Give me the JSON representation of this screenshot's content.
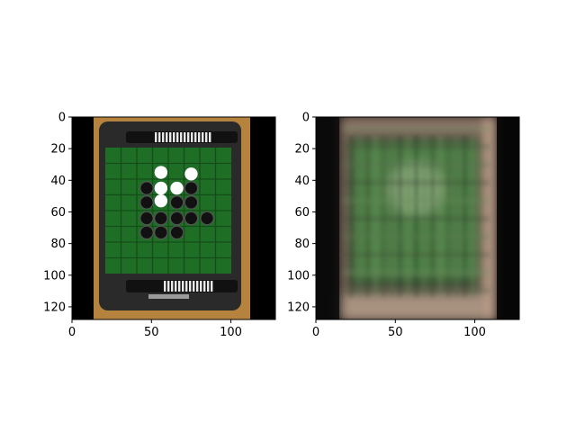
{
  "chart_data": [
    {
      "type": "image",
      "panel": "left",
      "content": "photo of an Othello board: green 8x8 grid, white and black discs, dark frame with disc racks",
      "xlim": [
        0,
        128
      ],
      "ylim": [
        128,
        0
      ],
      "x_ticks": [
        "0",
        "50",
        "100"
      ],
      "y_ticks": [
        "0",
        "20",
        "40",
        "60",
        "80",
        "100",
        "120"
      ],
      "colors": {
        "background": "#000000",
        "board": "#1f6e26",
        "frame": "#2a2a2a",
        "table": "#d69a4a",
        "white_disc": "#ffffff",
        "black_disc": "#111111"
      },
      "discs": {
        "white": [
          [
            56,
            35
          ],
          [
            75,
            36
          ],
          [
            56,
            45
          ],
          [
            66,
            45
          ],
          [
            56,
            53
          ]
        ],
        "black": [
          [
            47,
            45
          ],
          [
            47,
            54
          ],
          [
            66,
            54
          ],
          [
            75,
            45
          ],
          [
            75,
            54
          ],
          [
            47,
            64
          ],
          [
            56,
            64
          ],
          [
            66,
            64
          ],
          [
            75,
            64
          ],
          [
            85,
            64
          ],
          [
            47,
            73
          ],
          [
            56,
            73
          ],
          [
            66,
            73
          ]
        ]
      }
    },
    {
      "type": "image",
      "panel": "right",
      "content": "blurry low-rank reconstruction of the same Othello board photo",
      "xlim": [
        0,
        128
      ],
      "ylim": [
        128,
        0
      ],
      "x_ticks": [
        "0",
        "50",
        "100"
      ],
      "y_ticks": [
        "0",
        "20",
        "40",
        "60",
        "80",
        "100",
        "120"
      ],
      "colors": {
        "background": "#0a0a0a",
        "board": "#4e7f45",
        "frame": "#3a2e2a",
        "edge": "#b09a88"
      }
    }
  ]
}
